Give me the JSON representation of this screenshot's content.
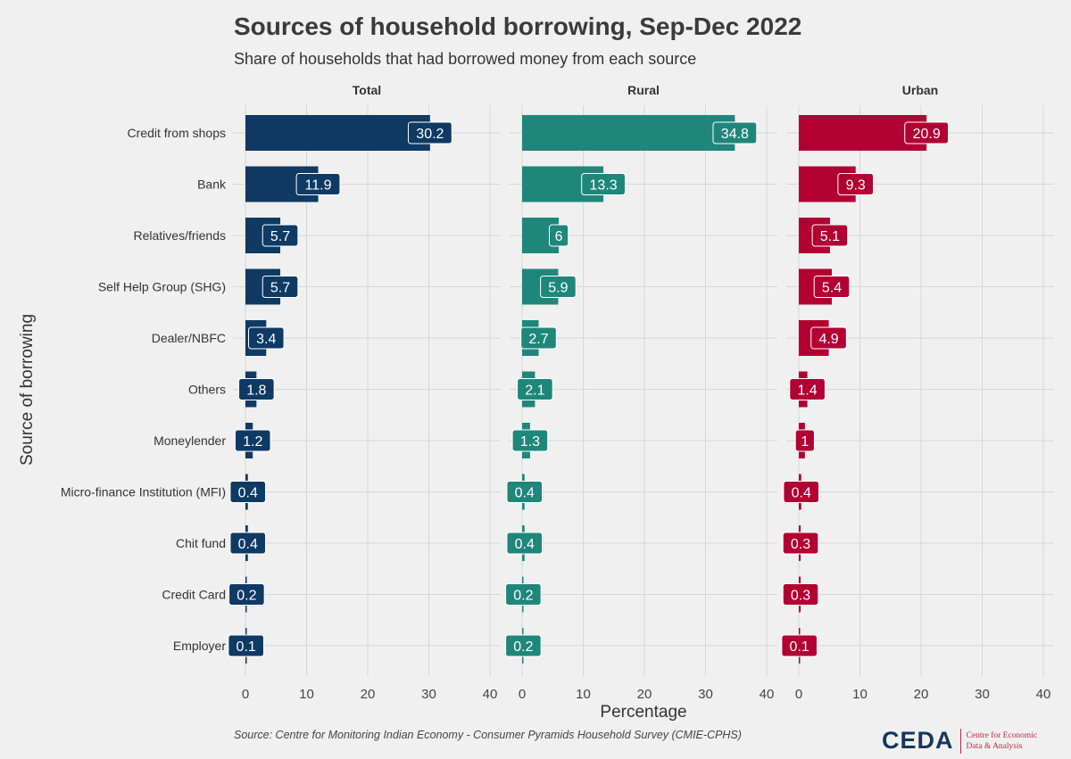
{
  "header": {
    "title": "Sources of household borrowing, Sep-Dec 2022",
    "subtitle": "Share of households that had borrowed money from each source"
  },
  "footer": {
    "source": "Source: Centre for Monitoring Indian Economy - Consumer Pyramids Household Survey (CMIE-CPHS)",
    "logo_mark": "CEDA",
    "logo_line1": "Centre for Economic",
    "logo_line2": "Data & Analysis"
  },
  "chart_data": {
    "type": "bar",
    "orientation": "horizontal",
    "title": "Sources of household borrowing, Sep-Dec 2022",
    "subtitle": "Share of households that had borrowed money from each source",
    "xlabel": "Percentage",
    "ylabel": "Source of borrowing",
    "xlim": [
      0,
      40
    ],
    "xticks": [
      0,
      10,
      20,
      30,
      40
    ],
    "grid": true,
    "legend": "none",
    "categories": [
      "Credit from shops",
      "Bank",
      "Relatives/friends",
      "Self Help Group (SHG)",
      "Dealer/NBFC",
      "Others",
      "Moneylender",
      "Micro-finance Institution (MFI)",
      "Chit fund",
      "Credit Card",
      "Employer"
    ],
    "series": [
      {
        "name": "Total",
        "color": "#0e3a64",
        "values": [
          30.2,
          11.9,
          5.7,
          5.7,
          3.4,
          1.8,
          1.2,
          0.4,
          0.4,
          0.2,
          0.1
        ]
      },
      {
        "name": "Rural",
        "color": "#1f867b",
        "values": [
          34.8,
          13.3,
          6,
          5.9,
          2.7,
          2.1,
          1.3,
          0.4,
          0.4,
          0.2,
          0.2
        ]
      },
      {
        "name": "Urban",
        "color": "#b20033",
        "values": [
          20.9,
          9.3,
          5.1,
          5.4,
          4.9,
          1.4,
          1,
          0.4,
          0.3,
          0.3,
          0.1
        ]
      }
    ]
  }
}
